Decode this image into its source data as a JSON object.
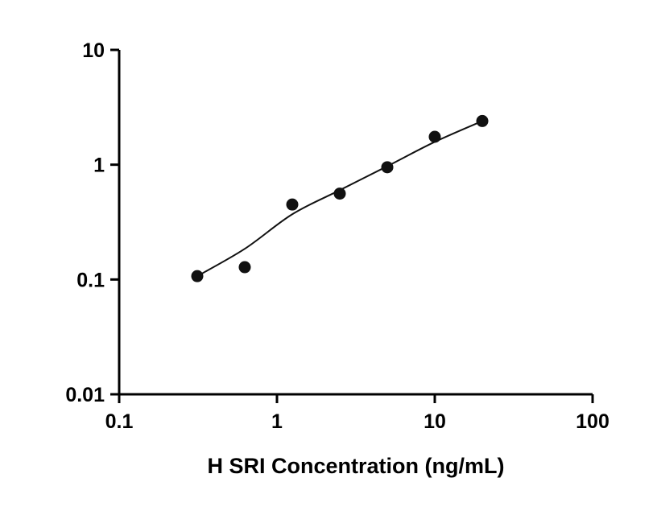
{
  "page": {
    "background_color": "#ffffff"
  },
  "chart_data": {
    "type": "scatter",
    "title": "",
    "xlabel": "H SRI Concentration (ng/mL)",
    "ylabel": "",
    "x_scale": "log",
    "y_scale": "log",
    "xlim": [
      0.1,
      100
    ],
    "ylim": [
      0.01,
      10
    ],
    "grid": false,
    "legend": false,
    "x_ticks": [
      {
        "value": 0.1,
        "label": "0.1"
      },
      {
        "value": 1,
        "label": "1"
      },
      {
        "value": 10,
        "label": "10"
      },
      {
        "value": 100,
        "label": "100"
      }
    ],
    "y_ticks": [
      {
        "value": 0.01,
        "label": "0.01"
      },
      {
        "value": 0.1,
        "label": "0.1"
      },
      {
        "value": 1,
        "label": "1"
      },
      {
        "value": 10,
        "label": "10"
      }
    ],
    "series": [
      {
        "name": "standard-points",
        "kind": "scatter",
        "marker_color": "#111111",
        "marker_radius": 7.5,
        "points": [
          {
            "x": 0.3125,
            "y": 0.107
          },
          {
            "x": 0.625,
            "y": 0.128
          },
          {
            "x": 1.25,
            "y": 0.45
          },
          {
            "x": 2.5,
            "y": 0.56
          },
          {
            "x": 5,
            "y": 0.95
          },
          {
            "x": 10,
            "y": 1.75
          },
          {
            "x": 20,
            "y": 2.4
          }
        ]
      },
      {
        "name": "fit-curve",
        "kind": "line",
        "line_color": "#111111",
        "line_width": 2,
        "points": [
          {
            "x": 0.3125,
            "y": 0.107
          },
          {
            "x": 0.625,
            "y": 0.185
          },
          {
            "x": 1.25,
            "y": 0.37
          },
          {
            "x": 2.5,
            "y": 0.6
          },
          {
            "x": 5,
            "y": 0.97
          },
          {
            "x": 10,
            "y": 1.58
          },
          {
            "x": 20,
            "y": 2.4
          }
        ]
      }
    ],
    "colors": {
      "axis": "#000000",
      "marker": "#111111",
      "line": "#111111",
      "background": "#ffffff"
    }
  }
}
